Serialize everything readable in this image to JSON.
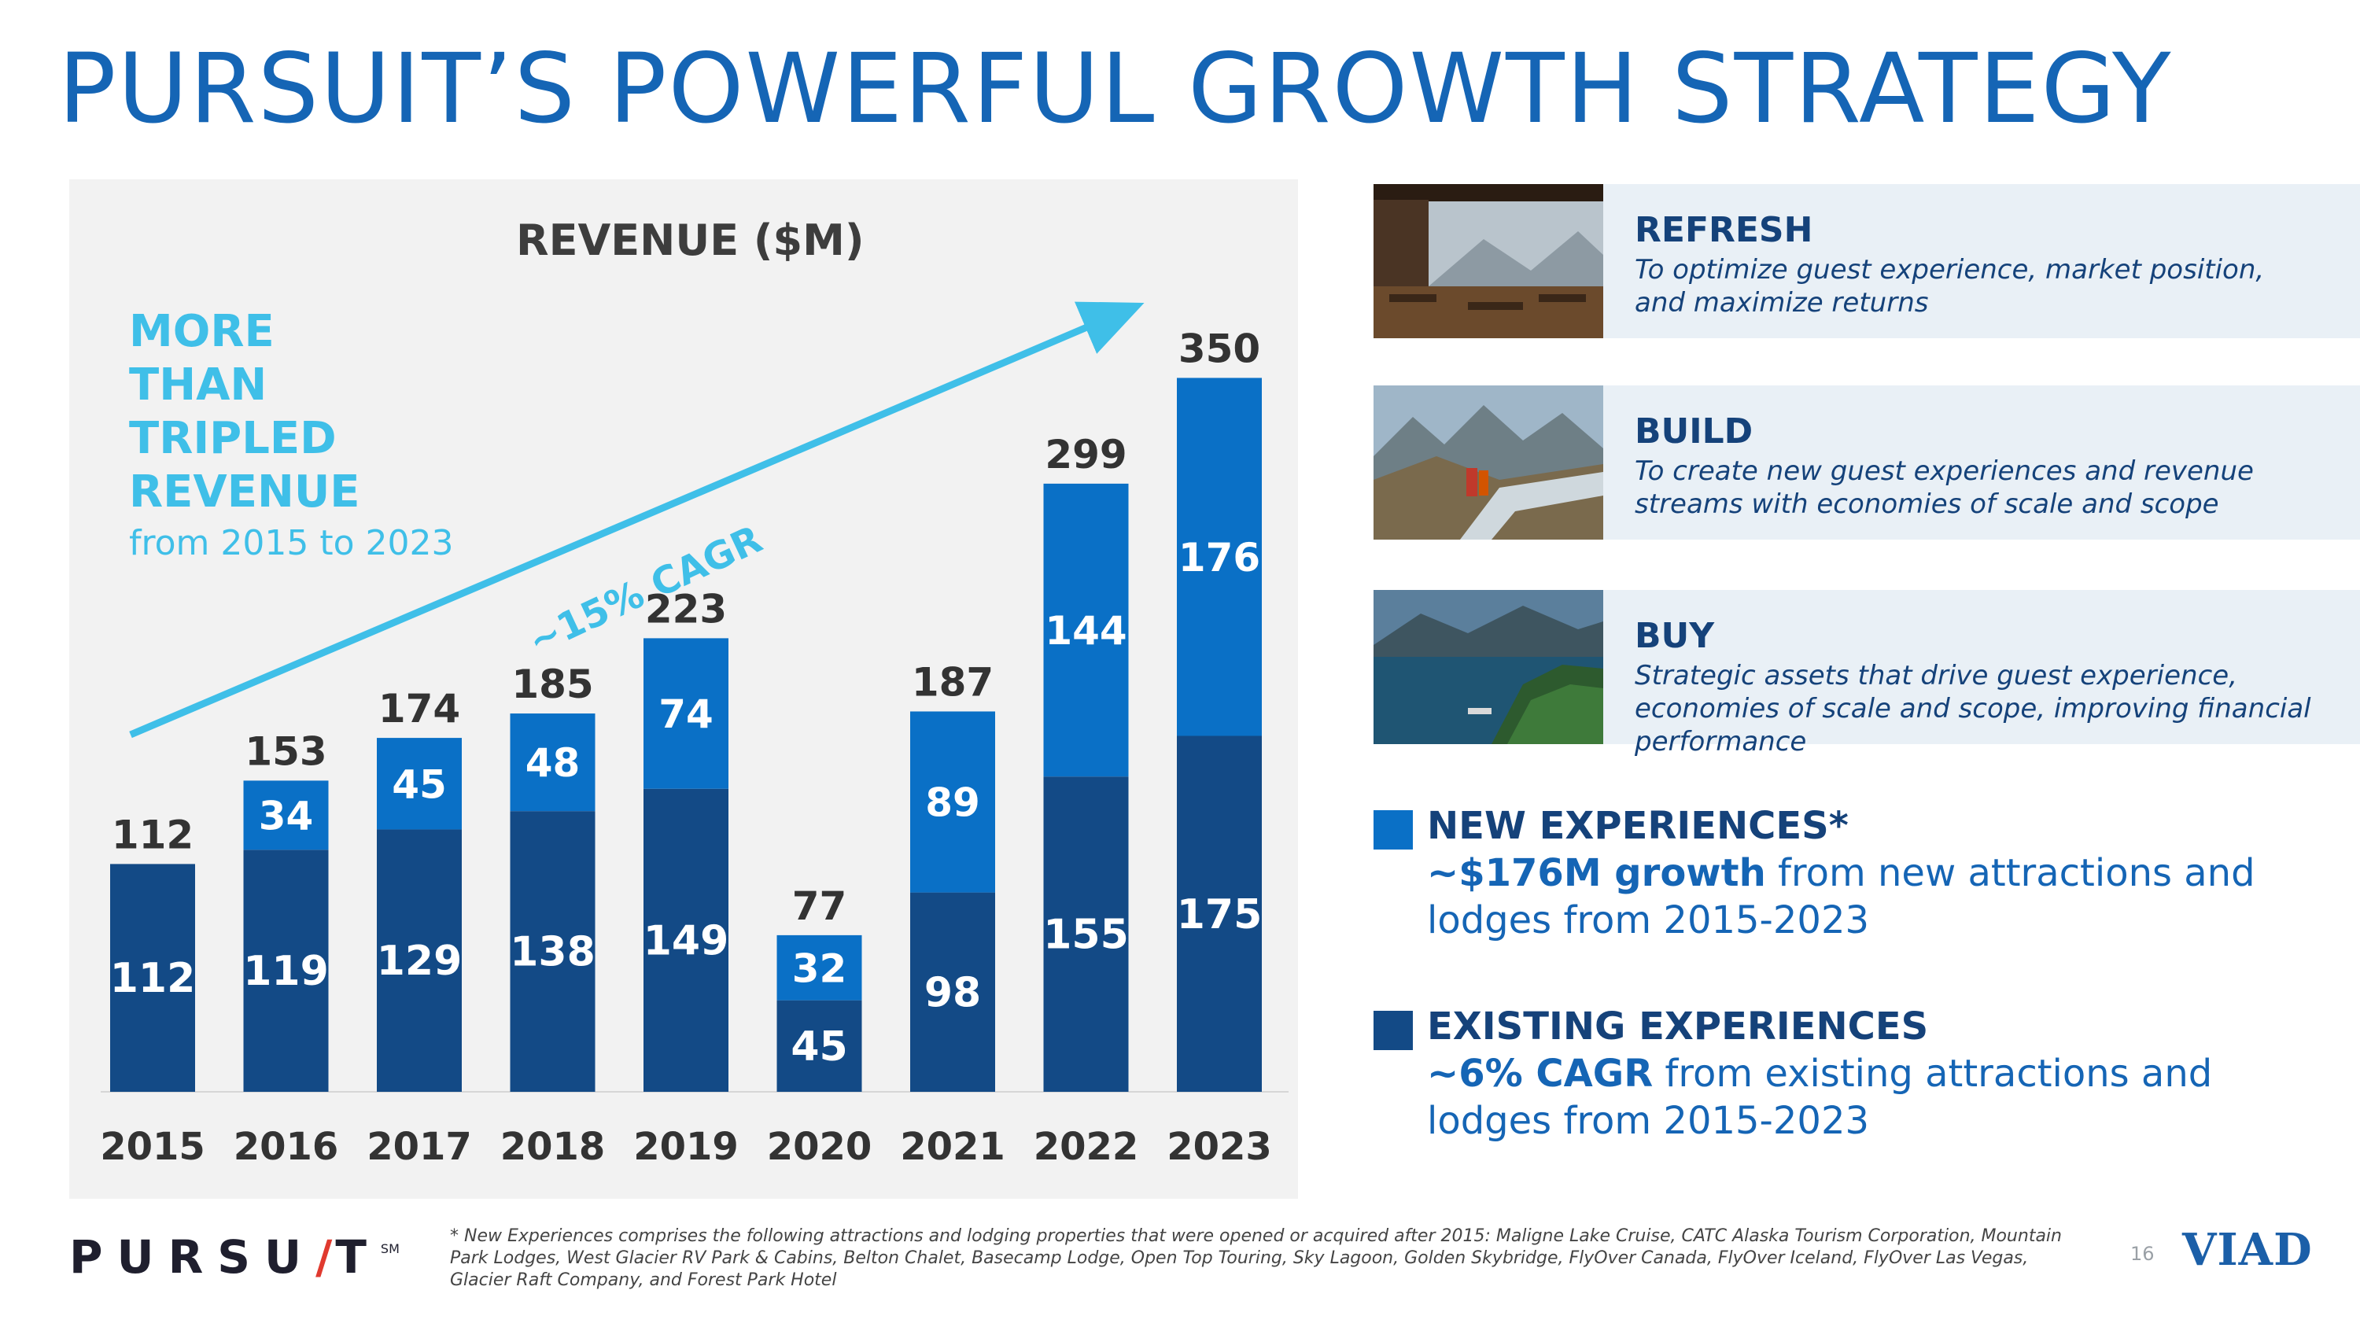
{
  "title": "PURSUIT’S POWERFUL GROWTH STRATEGY",
  "colors": {
    "existing": "#134a86",
    "new": "#0a70c6",
    "accent": "#3fbfe8",
    "navy_text": "#15427a",
    "panel": "#f2f2f2"
  },
  "callout": {
    "line1": "MORE",
    "line2": "THAN",
    "line3": "TRIPLED",
    "line4": "REVENUE",
    "sub": "from 2015 to 2023"
  },
  "cagr_label": "~15% CAGR",
  "chart_data": {
    "type": "bar",
    "stacked": true,
    "title": "REVENUE ($M)",
    "categories": [
      "2015",
      "2016",
      "2017",
      "2018",
      "2019",
      "2020",
      "2021",
      "2022",
      "2023"
    ],
    "series": [
      {
        "name": "EXISTING EXPERIENCES",
        "values": [
          112,
          119,
          129,
          138,
          149,
          45,
          98,
          155,
          175
        ]
      },
      {
        "name": "NEW EXPERIENCES*",
        "values": [
          0,
          34,
          45,
          48,
          74,
          32,
          89,
          144,
          176
        ]
      }
    ],
    "totals": [
      112,
      153,
      174,
      185,
      223,
      77,
      187,
      299,
      350
    ],
    "ylim": [
      0,
      380
    ],
    "grid": false,
    "xlabel": "",
    "ylabel": ""
  },
  "strategy": [
    {
      "head": "REFRESH",
      "desc": "To optimize guest experience, market position, and maximize returns",
      "photo": "restaurant-photo"
    },
    {
      "head": "BUILD",
      "desc": "To create new guest experiences and revenue streams with economies of scale and scope",
      "photo": "skywalk-photo"
    },
    {
      "head": "BUY",
      "desc": "Strategic assets that drive guest experience, economies of scale and scope, improving financial performance",
      "photo": "lake-photo"
    }
  ],
  "legend": {
    "new_head": "NEW EXPERIENCES*",
    "new_bold": "~$176M growth",
    "new_rest": " from new attractions and lodges from 2015-2023",
    "existing_head": "EXISTING EXPERIENCES",
    "existing_bold": "~6% CAGR",
    "existing_rest": " from existing attractions and lodges from 2015-2023"
  },
  "footer": {
    "brand_a": "PURSU",
    "brand_slash": "/",
    "brand_b": "T",
    "brand_sm": "SM",
    "footnote": "* New Experiences comprises the following attractions and lodging properties that were opened or acquired after 2015: Maligne Lake Cruise, CATC Alaska Tourism Corporation, Mountain Park Lodges, West Glacier RV Park & Cabins, Belton Chalet, Basecamp Lodge, Open Top Touring, Sky Lagoon, Golden Skybridge, FlyOver Canada, FlyOver Iceland, FlyOver Las Vegas, Glacier Raft Company, and Forest Park Hotel",
    "page_number": "16",
    "viad_logo": "VIAD"
  }
}
